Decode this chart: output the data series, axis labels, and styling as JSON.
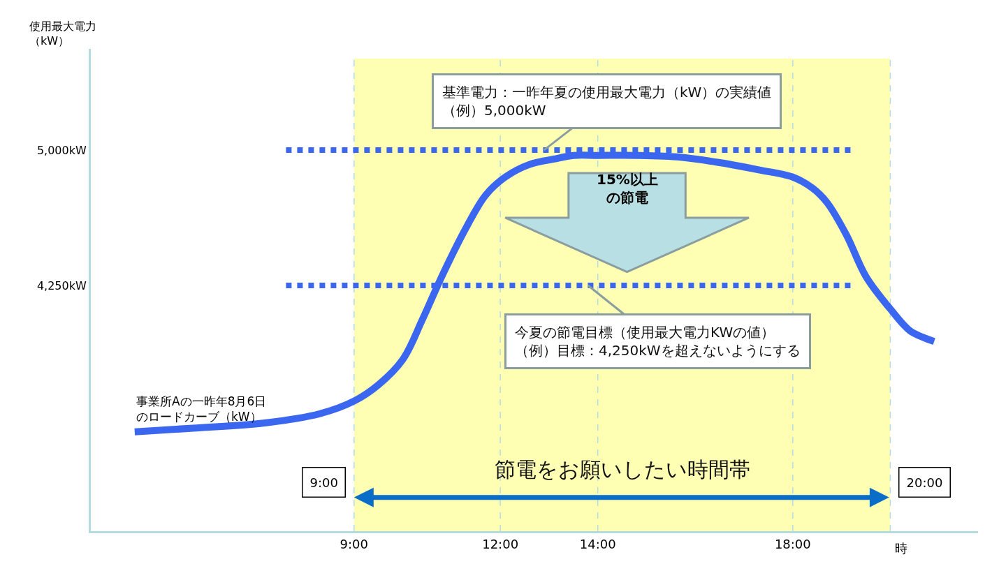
{
  "chart_data": {
    "type": "line",
    "xlabel": "時",
    "ylabel": "使用最大電力（kW）",
    "x": [
      4.5,
      5.7,
      7.2,
      8.3,
      9.0,
      9.5,
      10.0,
      10.4,
      10.8,
      11.3,
      11.7,
      12.1,
      12.6,
      13.1,
      13.5,
      14.0,
      14.8,
      15.7,
      16.5,
      17.3,
      18.0,
      18.4,
      18.7,
      19.1,
      19.5,
      20.0,
      20.4,
      20.7,
      20.9
    ],
    "series": [
      {
        "name": "事業所Aの一昨年8月6日のロードカーブ（kW）",
        "color": "#3a66f0",
        "values": [
          3440,
          3460,
          3490,
          3540,
          3610,
          3700,
          3840,
          4060,
          4300,
          4570,
          4750,
          4850,
          4920,
          4950,
          4970,
          4970,
          4970,
          4960,
          4930,
          4890,
          4850,
          4790,
          4710,
          4530,
          4300,
          4120,
          4000,
          3960,
          3940
        ]
      }
    ],
    "xlim": [
      3.6,
      21.8
    ],
    "xticks": [
      {
        "value": 9,
        "label": "9:00"
      },
      {
        "value": 12,
        "label": "12:00"
      },
      {
        "value": 14,
        "label": "14:00"
      },
      {
        "value": 18,
        "label": "18:00"
      }
    ],
    "ylim": [
      2890,
      5560
    ],
    "yticks": [
      {
        "value": 5000,
        "label": "5,000kW"
      },
      {
        "value": 4250,
        "label": "4,250kW"
      }
    ],
    "ref_lines": [
      {
        "axis": "y",
        "value": 5000,
        "color": "#3a66f0",
        "line_style": "dotted"
      },
      {
        "axis": "y",
        "value": 4250,
        "color": "#3a66f0",
        "line_style": "dotted"
      },
      {
        "axis": "x",
        "value": 9,
        "label": "9:00",
        "color": "#b4dce8",
        "line_style": "dashed"
      },
      {
        "axis": "x",
        "value": 12,
        "color": "#b4dce8",
        "line_style": "dashed"
      },
      {
        "axis": "x",
        "value": 14,
        "color": "#b4dce8",
        "line_style": "dashed"
      },
      {
        "axis": "x",
        "value": 18,
        "color": "#b4dce8",
        "line_style": "dashed"
      },
      {
        "axis": "x",
        "value": 20,
        "label": "20:00",
        "color": "#b4dce8",
        "line_style": "dashed"
      }
    ],
    "bands": [
      {
        "axis": "x",
        "from": 9,
        "to": 20,
        "label": "節電をお願いしたい時間帯",
        "color": "#ffffb4"
      }
    ],
    "annotations": [
      {
        "text": "基準電力：一昨年夏の使用最大電力（kW）の実績値（例）5,000kW",
        "x": 12.9,
        "y": 5000
      },
      "15%以上の節電",
      {
        "text": "今夏の節電目標（使用最大電力KWの値）（例）目標：4,250kWを超えないようにする",
        "x": 13.8,
        "y": 4250
      }
    ],
    "legend": false,
    "marker": "none",
    "line_style": "solid",
    "grid": false
  }
}
